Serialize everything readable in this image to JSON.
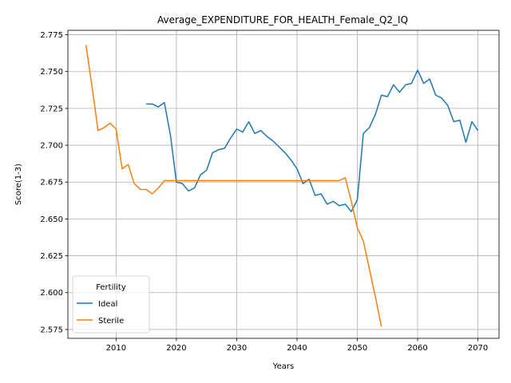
{
  "chart_data": {
    "type": "line",
    "title": "Average_EXPENDITURE_FOR_HEALTH_Female_Q2_IQ",
    "xlabel": "Years",
    "ylabel": "Score(1-3)",
    "xlim": [
      2002,
      2073.5
    ],
    "ylim": [
      2.569,
      2.778
    ],
    "xticks": [
      2010,
      2020,
      2030,
      2040,
      2050,
      2060,
      2070
    ],
    "yticks": [
      2.575,
      2.6,
      2.625,
      2.65,
      2.675,
      2.7,
      2.725,
      2.75,
      2.775
    ],
    "xtick_labels": [
      "2010",
      "2020",
      "2030",
      "2040",
      "2050",
      "2060",
      "2070"
    ],
    "ytick_labels": [
      "2.575",
      "2.600",
      "2.625",
      "2.650",
      "2.675",
      "2.700",
      "2.725",
      "2.750",
      "2.775"
    ],
    "grid": true,
    "legend": {
      "title": "Fertility",
      "placement": "lower-left"
    },
    "series": [
      {
        "name": "Ideal",
        "color": "#1f77b4",
        "points": [
          [
            2015,
            2.728
          ],
          [
            2016,
            2.728
          ],
          [
            2017,
            2.726
          ],
          [
            2018,
            2.729
          ],
          [
            2019,
            2.707
          ],
          [
            2020,
            2.675
          ],
          [
            2021,
            2.674
          ],
          [
            2022,
            2.669
          ],
          [
            2023,
            2.671
          ],
          [
            2024,
            2.68
          ],
          [
            2025,
            2.683
          ],
          [
            2026,
            2.695
          ],
          [
            2027,
            2.697
          ],
          [
            2028,
            2.698
          ],
          [
            2029,
            2.705
          ],
          [
            2030,
            2.711
          ],
          [
            2031,
            2.709
          ],
          [
            2032,
            2.716
          ],
          [
            2033,
            2.708
          ],
          [
            2034,
            2.71
          ],
          [
            2035,
            2.706
          ],
          [
            2036,
            2.703
          ],
          [
            2037,
            2.699
          ],
          [
            2038,
            2.695
          ],
          [
            2039,
            2.69
          ],
          [
            2040,
            2.684
          ],
          [
            2041,
            2.674
          ],
          [
            2042,
            2.677
          ],
          [
            2043,
            2.666
          ],
          [
            2044,
            2.667
          ],
          [
            2045,
            2.66
          ],
          [
            2046,
            2.662
          ],
          [
            2047,
            2.659
          ],
          [
            2048,
            2.66
          ],
          [
            2049,
            2.655
          ],
          [
            2050,
            2.663
          ],
          [
            2051,
            2.708
          ],
          [
            2052,
            2.712
          ],
          [
            2053,
            2.721
          ],
          [
            2054,
            2.734
          ],
          [
            2055,
            2.733
          ],
          [
            2056,
            2.741
          ],
          [
            2057,
            2.736
          ],
          [
            2058,
            2.741
          ],
          [
            2059,
            2.742
          ],
          [
            2060,
            2.751
          ],
          [
            2061,
            2.742
          ],
          [
            2062,
            2.745
          ],
          [
            2063,
            2.734
          ],
          [
            2064,
            2.732
          ],
          [
            2065,
            2.727
          ],
          [
            2066,
            2.716
          ],
          [
            2067,
            2.717
          ],
          [
            2068,
            2.702
          ],
          [
            2069,
            2.716
          ],
          [
            2070,
            2.71
          ]
        ]
      },
      {
        "name": "Sterile",
        "color": "#ff7f0e",
        "points": [
          [
            2005,
            2.768
          ],
          [
            2006,
            2.74
          ],
          [
            2007,
            2.71
          ],
          [
            2008,
            2.712
          ],
          [
            2009,
            2.715
          ],
          [
            2010,
            2.711
          ],
          [
            2011,
            2.684
          ],
          [
            2012,
            2.687
          ],
          [
            2013,
            2.674
          ],
          [
            2014,
            2.67
          ],
          [
            2015,
            2.67
          ],
          [
            2016,
            2.667
          ],
          [
            2017,
            2.671
          ],
          [
            2018,
            2.676
          ],
          [
            2019,
            2.676
          ],
          [
            2020,
            2.676
          ],
          [
            2025,
            2.676
          ],
          [
            2030,
            2.676
          ],
          [
            2035,
            2.676
          ],
          [
            2040,
            2.676
          ],
          [
            2045,
            2.676
          ],
          [
            2047,
            2.676
          ],
          [
            2048,
            2.678
          ],
          [
            2049,
            2.662
          ],
          [
            2050,
            2.644
          ],
          [
            2051,
            2.635
          ],
          [
            2052,
            2.616
          ],
          [
            2053,
            2.597
          ],
          [
            2054,
            2.577
          ]
        ]
      }
    ]
  }
}
